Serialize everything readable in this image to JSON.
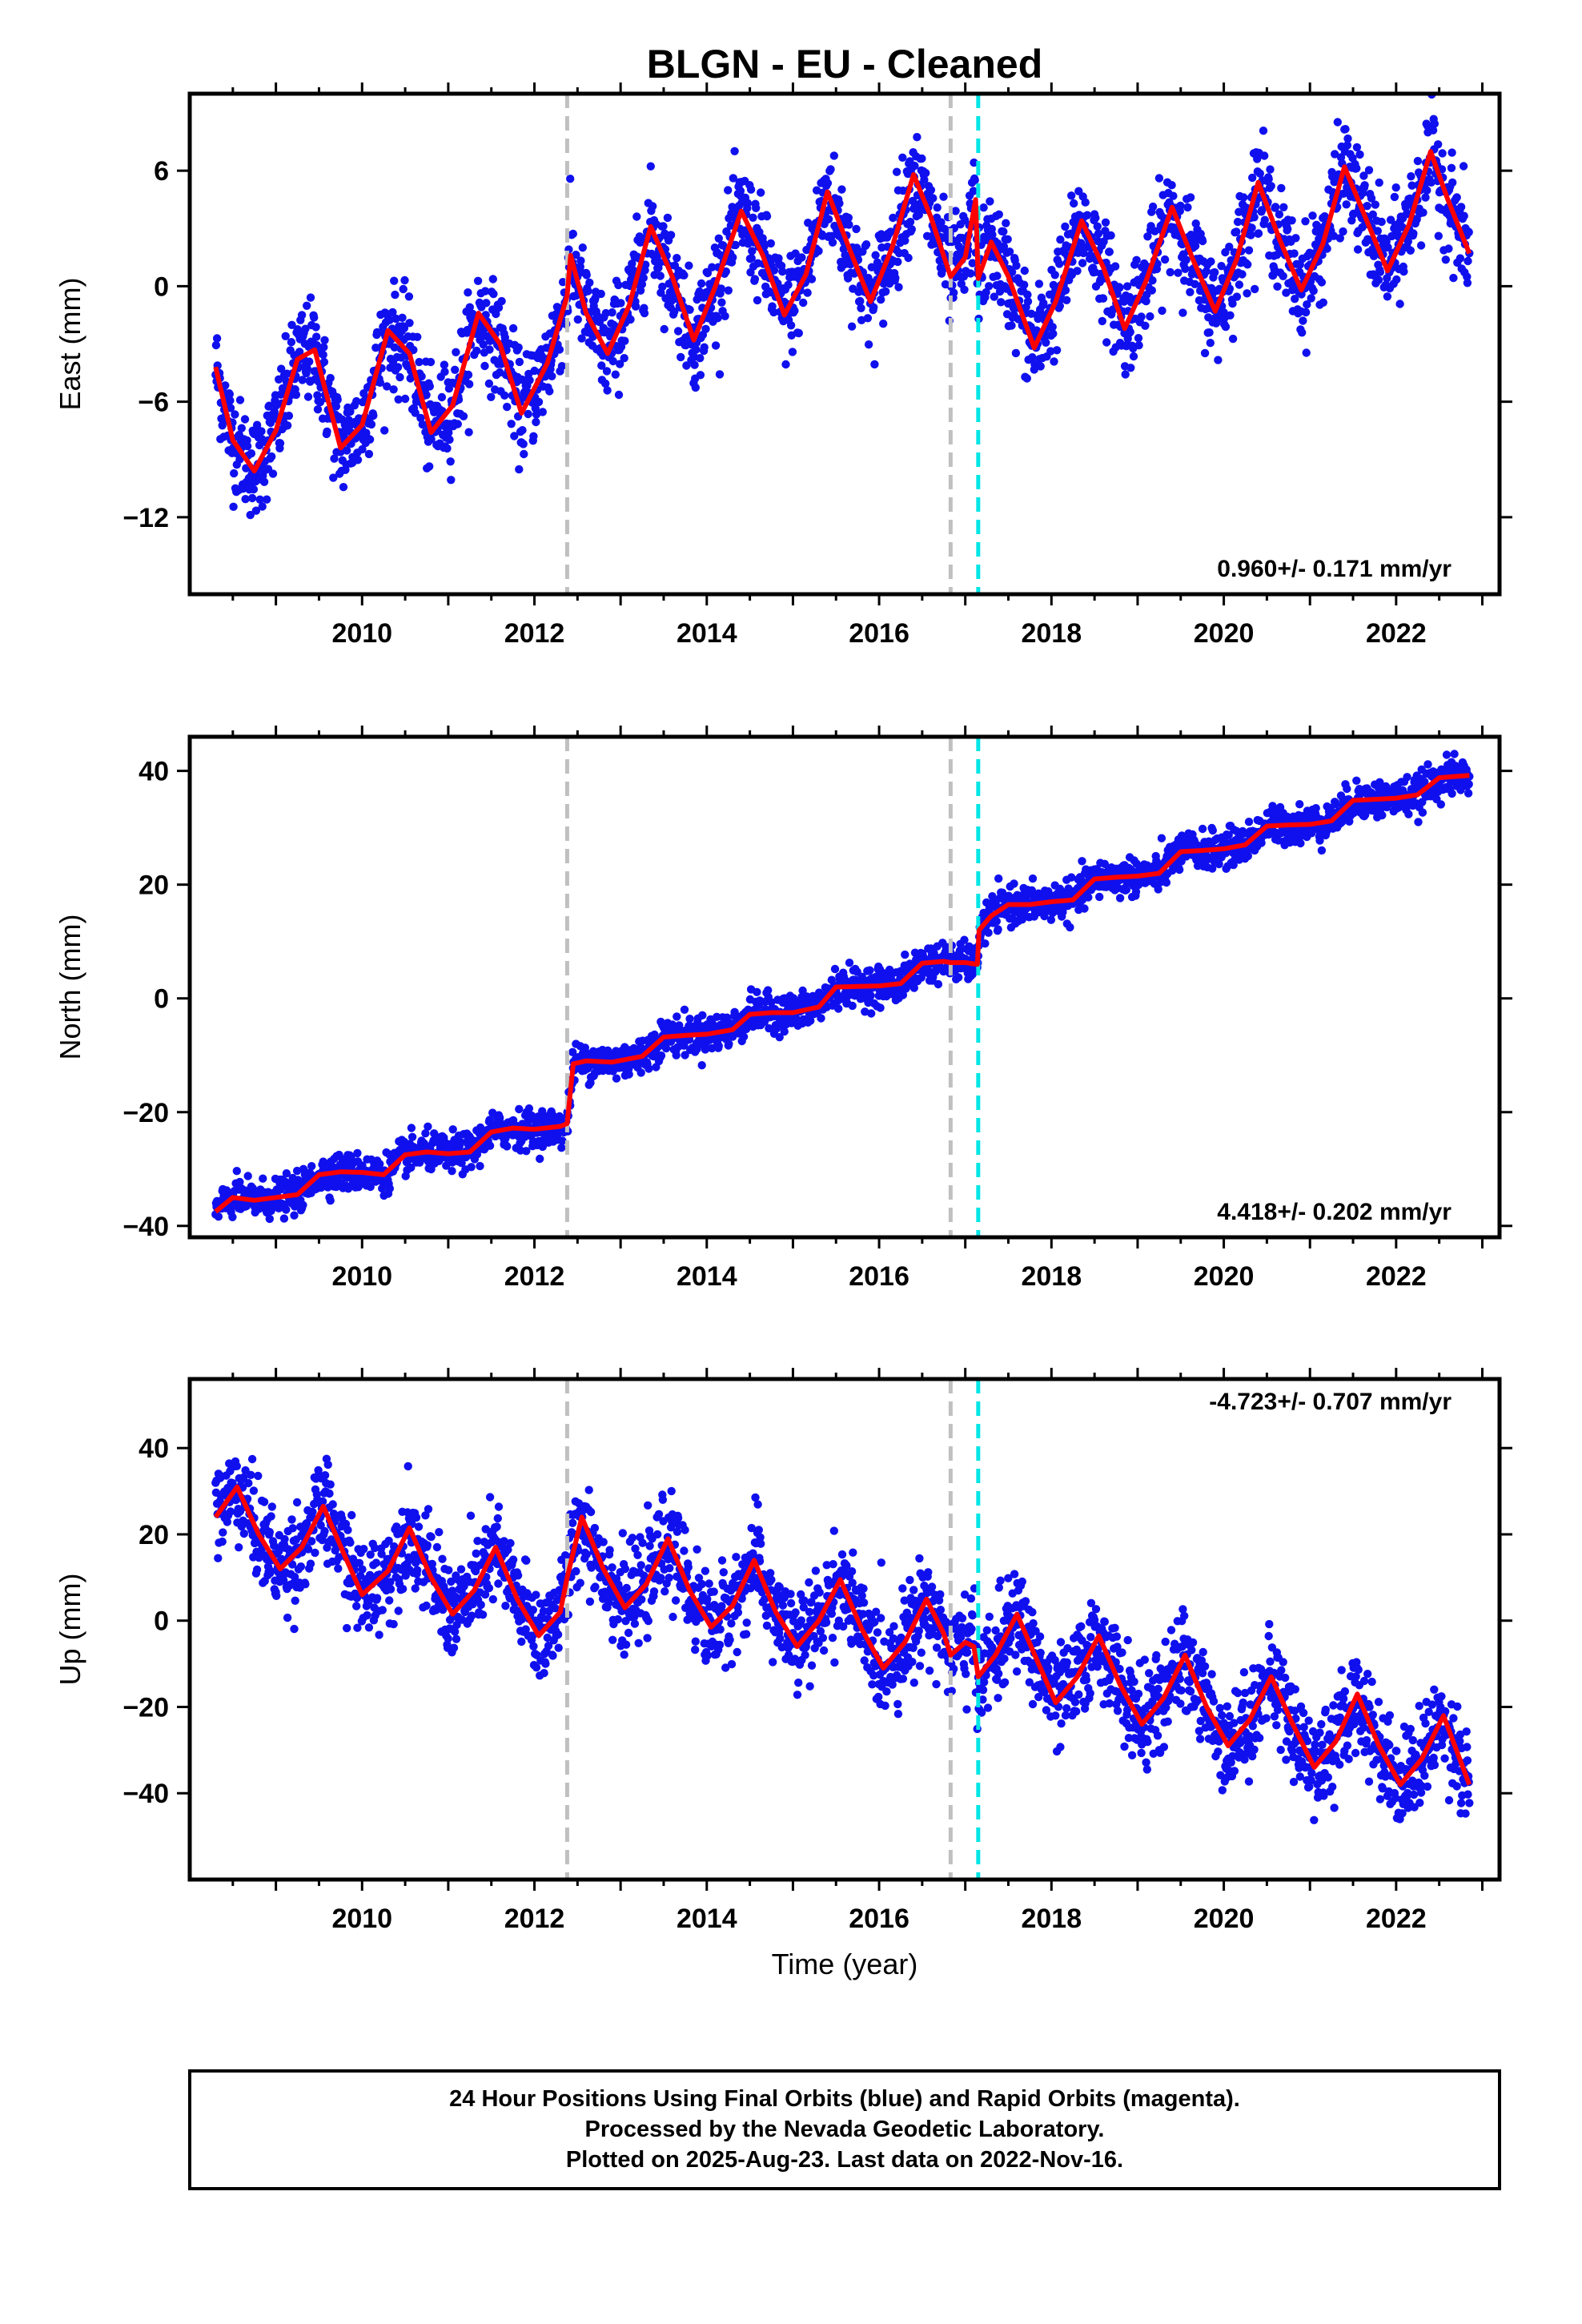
{
  "title": "BLGN  - EU - Cleaned",
  "colors": {
    "points": "#1010ee",
    "model": "#ff0000",
    "step_gray": "#c0c0c0",
    "step_cyan": "#00e5e5",
    "frame": "#000000"
  },
  "chart_data": [
    {
      "type": "scatter",
      "ylabel": "East (mm)",
      "xlabel": "",
      "xlim": [
        2008.0,
        2023.2
      ],
      "ylim": [
        -16,
        10
      ],
      "yticks": [
        -12,
        -6,
        0,
        6
      ],
      "xticks": [
        2010,
        2012,
        2014,
        2016,
        2018,
        2020,
        2022
      ],
      "rate_label": "0.960+/- 0.171 mm/yr",
      "rate_position": "bottom-right",
      "steps": [
        {
          "x": 2012.38,
          "color": "gray"
        },
        {
          "x": 2016.83,
          "color": "gray"
        },
        {
          "x": 2017.15,
          "color": "cyan"
        }
      ],
      "series": [
        {
          "values": [
            [
              2008.3,
              -4.2
            ],
            [
              2008.5,
              -8.0
            ],
            [
              2008.75,
              -9.6
            ],
            [
              2009.0,
              -7.5
            ],
            [
              2009.25,
              -3.8
            ],
            [
              2009.45,
              -3.3
            ],
            [
              2009.75,
              -8.4
            ],
            [
              2010.0,
              -7.2
            ],
            [
              2010.3,
              -2.3
            ],
            [
              2010.55,
              -3.5
            ],
            [
              2010.8,
              -7.6
            ],
            [
              2011.05,
              -6.2
            ],
            [
              2011.35,
              -1.4
            ],
            [
              2011.6,
              -3.0
            ],
            [
              2011.85,
              -6.6
            ],
            [
              2012.15,
              -4.0
            ],
            [
              2012.38,
              -0.5
            ],
            [
              2012.42,
              1.6
            ],
            [
              2012.6,
              -1.4
            ],
            [
              2012.85,
              -3.5
            ],
            [
              2013.1,
              -1.0
            ],
            [
              2013.35,
              3.1
            ],
            [
              2013.6,
              0.5
            ],
            [
              2013.85,
              -2.8
            ],
            [
              2014.1,
              0.0
            ],
            [
              2014.4,
              3.9
            ],
            [
              2014.65,
              1.6
            ],
            [
              2014.9,
              -1.5
            ],
            [
              2015.15,
              0.6
            ],
            [
              2015.4,
              4.9
            ],
            [
              2015.65,
              2.0
            ],
            [
              2015.9,
              -0.8
            ],
            [
              2016.15,
              2.0
            ],
            [
              2016.4,
              5.8
            ],
            [
              2016.6,
              3.6
            ],
            [
              2016.83,
              0.5
            ],
            [
              2017.0,
              1.5
            ],
            [
              2017.12,
              4.5
            ],
            [
              2017.15,
              0.4
            ],
            [
              2017.3,
              2.3
            ],
            [
              2017.5,
              0.5
            ],
            [
              2017.8,
              -3.2
            ],
            [
              2018.05,
              -0.8
            ],
            [
              2018.35,
              3.4
            ],
            [
              2018.6,
              1.0
            ],
            [
              2018.85,
              -2.2
            ],
            [
              2019.1,
              0.3
            ],
            [
              2019.4,
              4.1
            ],
            [
              2019.65,
              1.3
            ],
            [
              2019.9,
              -1.3
            ],
            [
              2020.15,
              1.4
            ],
            [
              2020.4,
              5.4
            ],
            [
              2020.65,
              2.4
            ],
            [
              2020.9,
              -0.2
            ],
            [
              2021.15,
              2.2
            ],
            [
              2021.4,
              6.2
            ],
            [
              2021.65,
              3.5
            ],
            [
              2021.9,
              0.8
            ],
            [
              2022.15,
              3.2
            ],
            [
              2022.4,
              7.0
            ],
            [
              2022.6,
              4.5
            ],
            [
              2022.85,
              1.7
            ]
          ]
        }
      ]
    },
    {
      "type": "scatter",
      "ylabel": "North (mm)",
      "xlabel": "",
      "xlim": [
        2008.0,
        2023.2
      ],
      "ylim": [
        -42,
        46
      ],
      "yticks": [
        -40,
        -20,
        0,
        20,
        40
      ],
      "xticks": [
        2010,
        2012,
        2014,
        2016,
        2018,
        2020,
        2022
      ],
      "rate_label": "4.418+/- 0.202 mm/yr",
      "rate_position": "bottom-right",
      "steps": [
        {
          "x": 2012.38,
          "color": "gray"
        },
        {
          "x": 2016.83,
          "color": "gray"
        },
        {
          "x": 2017.15,
          "color": "cyan"
        }
      ],
      "series": [
        {
          "values": [
            [
              2008.3,
              -37.5
            ],
            [
              2008.5,
              -35.0
            ],
            [
              2008.75,
              -35.5
            ],
            [
              2009.0,
              -35.0
            ],
            [
              2009.25,
              -34.5
            ],
            [
              2009.5,
              -31.0
            ],
            [
              2009.75,
              -30.5
            ],
            [
              2010.0,
              -30.6
            ],
            [
              2010.25,
              -31.0
            ],
            [
              2010.5,
              -27.5
            ],
            [
              2010.75,
              -27.0
            ],
            [
              2011.0,
              -27.3
            ],
            [
              2011.25,
              -27.0
            ],
            [
              2011.5,
              -23.5
            ],
            [
              2011.75,
              -22.8
            ],
            [
              2012.0,
              -23.0
            ],
            [
              2012.3,
              -22.5
            ],
            [
              2012.38,
              -22.0
            ],
            [
              2012.45,
              -11.5
            ],
            [
              2012.6,
              -11.0
            ],
            [
              2012.9,
              -11.2
            ],
            [
              2013.25,
              -10.2
            ],
            [
              2013.5,
              -6.8
            ],
            [
              2013.75,
              -6.5
            ],
            [
              2014.0,
              -6.3
            ],
            [
              2014.3,
              -5.5
            ],
            [
              2014.5,
              -2.8
            ],
            [
              2014.75,
              -2.5
            ],
            [
              2015.0,
              -2.5
            ],
            [
              2015.3,
              -1.5
            ],
            [
              2015.5,
              2.0
            ],
            [
              2015.75,
              2.1
            ],
            [
              2016.0,
              2.2
            ],
            [
              2016.25,
              2.6
            ],
            [
              2016.5,
              6.2
            ],
            [
              2016.75,
              6.5
            ],
            [
              2016.83,
              6.3
            ],
            [
              2017.0,
              6.3
            ],
            [
              2017.14,
              6.0
            ],
            [
              2017.16,
              12.0
            ],
            [
              2017.3,
              14.5
            ],
            [
              2017.5,
              16.5
            ],
            [
              2017.75,
              16.5
            ],
            [
              2018.0,
              17.0
            ],
            [
              2018.25,
              17.3
            ],
            [
              2018.5,
              21.0
            ],
            [
              2018.75,
              21.3
            ],
            [
              2019.0,
              21.5
            ],
            [
              2019.25,
              22.0
            ],
            [
              2019.5,
              25.8
            ],
            [
              2019.75,
              26.0
            ],
            [
              2020.0,
              26.3
            ],
            [
              2020.25,
              27.0
            ],
            [
              2020.5,
              30.3
            ],
            [
              2020.75,
              30.5
            ],
            [
              2021.0,
              30.6
            ],
            [
              2021.25,
              31.2
            ],
            [
              2021.5,
              34.8
            ],
            [
              2021.75,
              35.0
            ],
            [
              2022.0,
              35.2
            ],
            [
              2022.25,
              35.8
            ],
            [
              2022.5,
              38.8
            ],
            [
              2022.85,
              39.2
            ]
          ]
        }
      ]
    },
    {
      "type": "scatter",
      "ylabel": "Up (mm)",
      "xlabel": "Time (year)",
      "xlim": [
        2008.0,
        2023.2
      ],
      "ylim": [
        -60,
        56
      ],
      "yticks": [
        -40,
        -20,
        0,
        20,
        40
      ],
      "xticks": [
        2010,
        2012,
        2014,
        2016,
        2018,
        2020,
        2022
      ],
      "rate_label": "-4.723+/- 0.707 mm/yr",
      "rate_position": "top-right",
      "steps": [
        {
          "x": 2012.38,
          "color": "gray"
        },
        {
          "x": 2016.83,
          "color": "gray"
        },
        {
          "x": 2017.15,
          "color": "cyan"
        }
      ],
      "series": [
        {
          "values": [
            [
              2008.3,
              24.0
            ],
            [
              2008.55,
              31.0
            ],
            [
              2008.8,
              20.0
            ],
            [
              2009.05,
              12.0
            ],
            [
              2009.3,
              17.0
            ],
            [
              2009.55,
              26.5
            ],
            [
              2009.8,
              15.0
            ],
            [
              2010.0,
              6.0
            ],
            [
              2010.3,
              11.5
            ],
            [
              2010.55,
              21.5
            ],
            [
              2010.8,
              10.0
            ],
            [
              2011.05,
              1.5
            ],
            [
              2011.3,
              7.0
            ],
            [
              2011.55,
              17.0
            ],
            [
              2011.8,
              5.0
            ],
            [
              2012.05,
              -3.5
            ],
            [
              2012.3,
              2.0
            ],
            [
              2012.38,
              10.0
            ],
            [
              2012.55,
              24.0
            ],
            [
              2012.8,
              12.0
            ],
            [
              2013.05,
              3.0
            ],
            [
              2013.3,
              8.5
            ],
            [
              2013.55,
              19.0
            ],
            [
              2013.8,
              7.0
            ],
            [
              2014.05,
              -1.5
            ],
            [
              2014.3,
              3.5
            ],
            [
              2014.55,
              14.0
            ],
            [
              2014.8,
              2.0
            ],
            [
              2015.05,
              -6.0
            ],
            [
              2015.3,
              0.0
            ],
            [
              2015.55,
              9.5
            ],
            [
              2015.8,
              -2.0
            ],
            [
              2016.05,
              -11.0
            ],
            [
              2016.3,
              -5.0
            ],
            [
              2016.55,
              5.0
            ],
            [
              2016.75,
              -3.0
            ],
            [
              2016.83,
              -8.0
            ],
            [
              2017.0,
              -5.0
            ],
            [
              2017.1,
              -6.0
            ],
            [
              2017.15,
              -13.0
            ],
            [
              2017.35,
              -8.0
            ],
            [
              2017.6,
              1.5
            ],
            [
              2017.85,
              -10.0
            ],
            [
              2018.05,
              -19.0
            ],
            [
              2018.3,
              -13.0
            ],
            [
              2018.55,
              -3.5
            ],
            [
              2018.8,
              -15.0
            ],
            [
              2019.05,
              -24.0
            ],
            [
              2019.3,
              -18.0
            ],
            [
              2019.55,
              -8.0
            ],
            [
              2019.8,
              -20.0
            ],
            [
              2020.05,
              -29.0
            ],
            [
              2020.3,
              -23.0
            ],
            [
              2020.55,
              -13.0
            ],
            [
              2020.8,
              -24.0
            ],
            [
              2021.05,
              -34.0
            ],
            [
              2021.3,
              -28.0
            ],
            [
              2021.55,
              -17.0
            ],
            [
              2021.8,
              -29.0
            ],
            [
              2022.05,
              -38.0
            ],
            [
              2022.3,
              -32.0
            ],
            [
              2022.55,
              -22.0
            ],
            [
              2022.85,
              -38.0
            ]
          ]
        }
      ]
    }
  ],
  "footer": {
    "line1": "24 Hour Positions Using Final Orbits (blue) and Rapid Orbits (magenta).",
    "line2": "Processed by the Nevada Geodetic Laboratory.",
    "line3": "Plotted on 2025-Aug-23. Last data on 2022-Nov-16."
  }
}
